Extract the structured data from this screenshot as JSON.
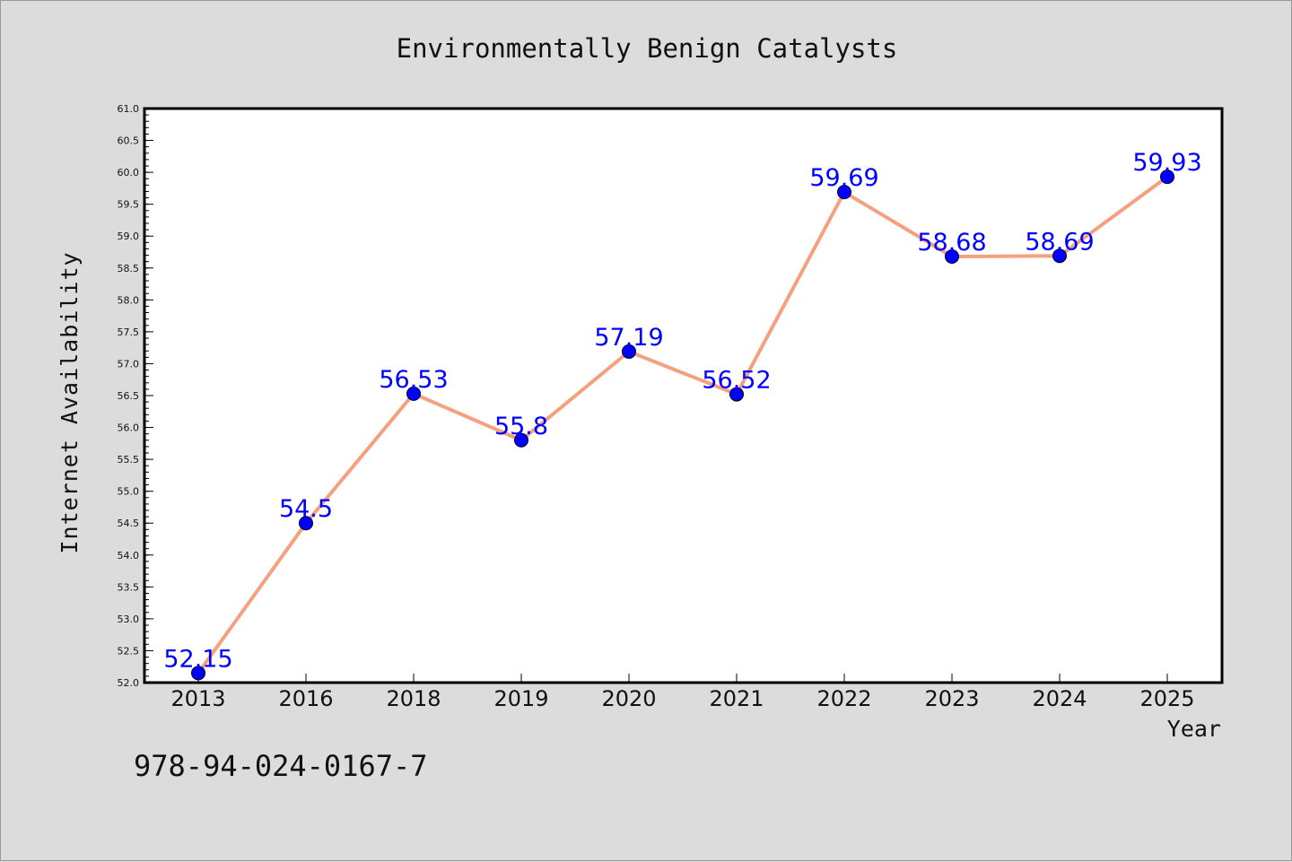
{
  "chart_data": {
    "type": "line",
    "title": "Environmentally Benign Catalysts",
    "xlabel": "Year",
    "ylabel": "Internet Availability",
    "categories": [
      "2013",
      "2016",
      "2018",
      "2019",
      "2020",
      "2021",
      "2022",
      "2023",
      "2024",
      "2025"
    ],
    "values": [
      52.15,
      54.5,
      56.53,
      55.8,
      57.19,
      56.52,
      59.69,
      58.68,
      58.69,
      59.93
    ],
    "data_labels": [
      "52.15",
      "54.5",
      "56.53",
      "55.8",
      "57.19",
      "56.52",
      "59.69",
      "58.68",
      "58.69",
      "59.93"
    ],
    "ylim": [
      52.0,
      61.0
    ],
    "yticks_major": [
      "52.0",
      "52.5",
      "53.0",
      "53.5",
      "54.0",
      "54.5",
      "55.0",
      "55.5",
      "56.0",
      "56.5",
      "57.0",
      "57.5",
      "58.0",
      "58.5",
      "59.0",
      "59.5",
      "60.0",
      "60.5",
      "61.0"
    ],
    "grid": false,
    "legend": "none",
    "line_color": "#f5a07f",
    "marker_color": "#0000ff",
    "label_color": "#0000ff"
  },
  "footer": {
    "code": "978-94-024-0167-7"
  }
}
